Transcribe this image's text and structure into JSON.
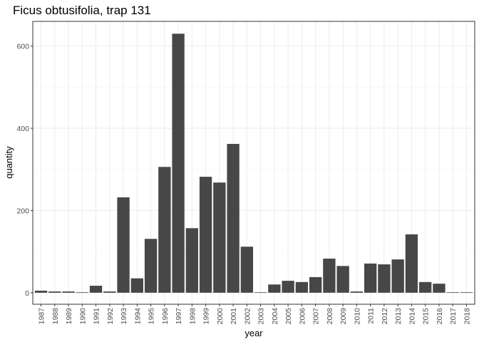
{
  "chart_data": {
    "type": "bar",
    "title": "Ficus obtusifolia, trap 131",
    "xlabel": "year",
    "ylabel": "quantity",
    "categories": [
      "1987",
      "1988",
      "1989",
      "1990",
      "1991",
      "1992",
      "1993",
      "1994",
      "1995",
      "1996",
      "1997",
      "1998",
      "1999",
      "2000",
      "2001",
      "2002",
      "2003",
      "2004",
      "2005",
      "2006",
      "2007",
      "2008",
      "2009",
      "2010",
      "2011",
      "2012",
      "2013",
      "2014",
      "2015",
      "2016",
      "2017",
      "2018"
    ],
    "values": [
      5,
      3,
      3,
      1,
      17,
      3,
      232,
      35,
      131,
      306,
      630,
      157,
      282,
      268,
      362,
      112,
      1,
      20,
      29,
      26,
      38,
      83,
      65,
      3,
      71,
      69,
      81,
      142,
      26,
      22,
      1,
      1
    ],
    "ylim": [
      -28,
      660
    ],
    "yticks": [
      0,
      200,
      400,
      600
    ],
    "yticks_minor": [
      100,
      300,
      500
    ],
    "grid": true,
    "bar_color": "#474747",
    "grid_color": "#ebebeb"
  }
}
